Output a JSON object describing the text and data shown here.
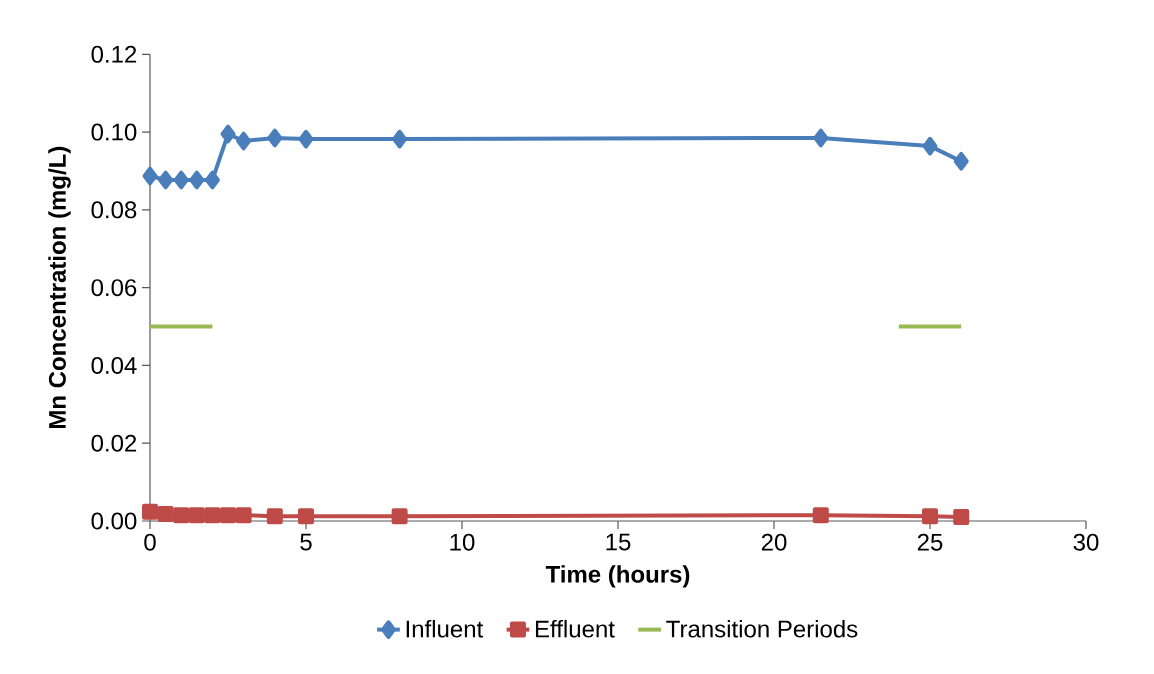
{
  "chart_data": {
    "type": "line",
    "xlabel": "Time (hours)",
    "ylabel": "Mn Concentration (mg/L)",
    "xlim": [
      0,
      30
    ],
    "xticks": [
      0,
      5,
      10,
      15,
      20,
      25,
      30
    ],
    "ylim": [
      0,
      0.12
    ],
    "yticks": [
      {
        "value": 0,
        "label": "0.00"
      },
      {
        "value": 0.02,
        "label": "0.02"
      },
      {
        "value": 0.04,
        "label": "0.04"
      },
      {
        "value": 0.06,
        "label": "0.06"
      },
      {
        "value": 0.08,
        "label": "0.08"
      },
      {
        "value": 0.1,
        "label": "0.10"
      },
      {
        "value": 0.12,
        "label": "0.12"
      }
    ],
    "grid": false,
    "legend": "bottom",
    "line_style": "solid",
    "series": [
      {
        "name": "Influent",
        "color": "#4a7ebb",
        "marker": "diamond",
        "x": [
          0,
          0.5,
          1,
          1.5,
          2,
          2.5,
          3,
          4,
          5,
          8,
          21.5,
          25,
          26
        ],
        "values": [
          0.0887,
          0.0877,
          0.0877,
          0.0877,
          0.0877,
          0.0995,
          0.0977,
          0.0985,
          0.0982,
          0.0982,
          0.0985,
          0.0964,
          0.0925
        ]
      },
      {
        "name": "Effluent",
        "color": "#be4b48",
        "marker": "square",
        "x": [
          0,
          0.5,
          1,
          1.5,
          2,
          2.5,
          3,
          4,
          5,
          8,
          21.5,
          25,
          26
        ],
        "values": [
          0.0024,
          0.0018,
          0.0015,
          0.0015,
          0.0015,
          0.0015,
          0.0015,
          0.0012,
          0.0012,
          0.0012,
          0.0015,
          0.0012,
          0.001
        ]
      },
      {
        "name": "Transition Periods",
        "color": "#98b954",
        "marker": "none",
        "x": [
          0,
          2,
          13,
          24,
          26
        ],
        "values": [
          0.05,
          0.05,
          null,
          0.05,
          0.05
        ]
      }
    ]
  }
}
